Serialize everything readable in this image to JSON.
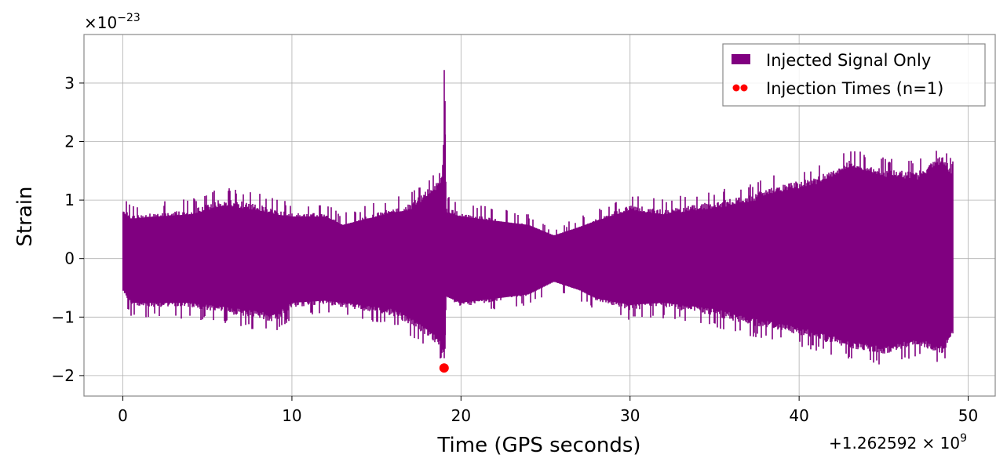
{
  "chart_data": {
    "type": "line",
    "xlabel": "Time (GPS seconds)",
    "ylabel": "Strain",
    "x_offset_label": "+1.262592 × 10",
    "x_offset_exponent": "9",
    "y_scale_label": "×10",
    "y_scale_exponent": "−23",
    "xlim": [
      -2.3,
      51.6
    ],
    "ylim": [
      -2.35,
      3.83
    ],
    "x_ticks": [
      {
        "value": 0,
        "label": "0"
      },
      {
        "value": 10,
        "label": "10"
      },
      {
        "value": 20,
        "label": "20"
      },
      {
        "value": 30,
        "label": "30"
      },
      {
        "value": 40,
        "label": "40"
      },
      {
        "value": 50,
        "label": "50"
      }
    ],
    "y_ticks": [
      {
        "value": -2,
        "label": "−2"
      },
      {
        "value": -1,
        "label": "−1"
      },
      {
        "value": 0,
        "label": "0"
      },
      {
        "value": 1,
        "label": "1"
      },
      {
        "value": 2,
        "label": "2"
      },
      {
        "value": 3,
        "label": "3"
      }
    ],
    "grid": true,
    "legend_position": "top-right",
    "series": [
      {
        "name": "Injected Signal Only",
        "kind": "strain-envelope",
        "color": "#800080",
        "x_start": 0,
        "x_end": 49.1,
        "envelope": [
          {
            "x": 0,
            "upper": 1.1,
            "lower": -0.75
          },
          {
            "x": 0.5,
            "upper": 0.95,
            "lower": -1.05
          },
          {
            "x": 2,
            "upper": 1.0,
            "lower": -1.05
          },
          {
            "x": 4,
            "upper": 1.05,
            "lower": -1.05
          },
          {
            "x": 6,
            "upper": 1.25,
            "lower": -1.15
          },
          {
            "x": 8,
            "upper": 1.15,
            "lower": -1.25
          },
          {
            "x": 9,
            "upper": 1.05,
            "lower": -1.3
          },
          {
            "x": 10,
            "upper": 1.0,
            "lower": -1.05
          },
          {
            "x": 12,
            "upper": 1.0,
            "lower": -1.0
          },
          {
            "x": 13,
            "upper": 0.8,
            "lower": -1.05
          },
          {
            "x": 15,
            "upper": 1.0,
            "lower": -1.15
          },
          {
            "x": 16,
            "upper": 1.1,
            "lower": -1.2
          },
          {
            "x": 17,
            "upper": 1.15,
            "lower": -1.35
          },
          {
            "x": 18,
            "upper": 1.4,
            "lower": -1.55
          },
          {
            "x": 18.7,
            "upper": 1.55,
            "lower": -1.7
          },
          {
            "x": 18.95,
            "upper": 1.7,
            "lower": -1.9
          },
          {
            "x": 19.0,
            "upper": 3.55,
            "lower": -2.05
          },
          {
            "x": 19.06,
            "upper": 2.9,
            "lower": -1.8
          },
          {
            "x": 19.12,
            "upper": 1.1,
            "lower": -0.9
          },
          {
            "x": 20,
            "upper": 1.0,
            "lower": -1.05
          },
          {
            "x": 22,
            "upper": 0.9,
            "lower": -0.95
          },
          {
            "x": 24,
            "upper": 0.8,
            "lower": -0.85
          },
          {
            "x": 25.5,
            "upper": 0.55,
            "lower": -0.55
          },
          {
            "x": 27,
            "upper": 0.75,
            "lower": -0.75
          },
          {
            "x": 28,
            "upper": 0.9,
            "lower": -0.95
          },
          {
            "x": 30,
            "upper": 1.15,
            "lower": -1.1
          },
          {
            "x": 32,
            "upper": 1.05,
            "lower": -1.05
          },
          {
            "x": 35,
            "upper": 1.2,
            "lower": -1.2
          },
          {
            "x": 37,
            "upper": 1.3,
            "lower": -1.35
          },
          {
            "x": 39,
            "upper": 1.5,
            "lower": -1.45
          },
          {
            "x": 41,
            "upper": 1.6,
            "lower": -1.6
          },
          {
            "x": 43,
            "upper": 1.9,
            "lower": -1.75
          },
          {
            "x": 45,
            "upper": 1.75,
            "lower": -1.85
          },
          {
            "x": 47,
            "upper": 1.7,
            "lower": -1.7
          },
          {
            "x": 48.5,
            "upper": 2.0,
            "lower": -1.85
          },
          {
            "x": 49.1,
            "upper": 1.7,
            "lower": -1.5
          }
        ]
      },
      {
        "name": "Injection Times (n=1)",
        "kind": "scatter",
        "color": "#ff0000",
        "points": [
          {
            "x": 19.0,
            "y": -1.87
          }
        ]
      }
    ]
  }
}
